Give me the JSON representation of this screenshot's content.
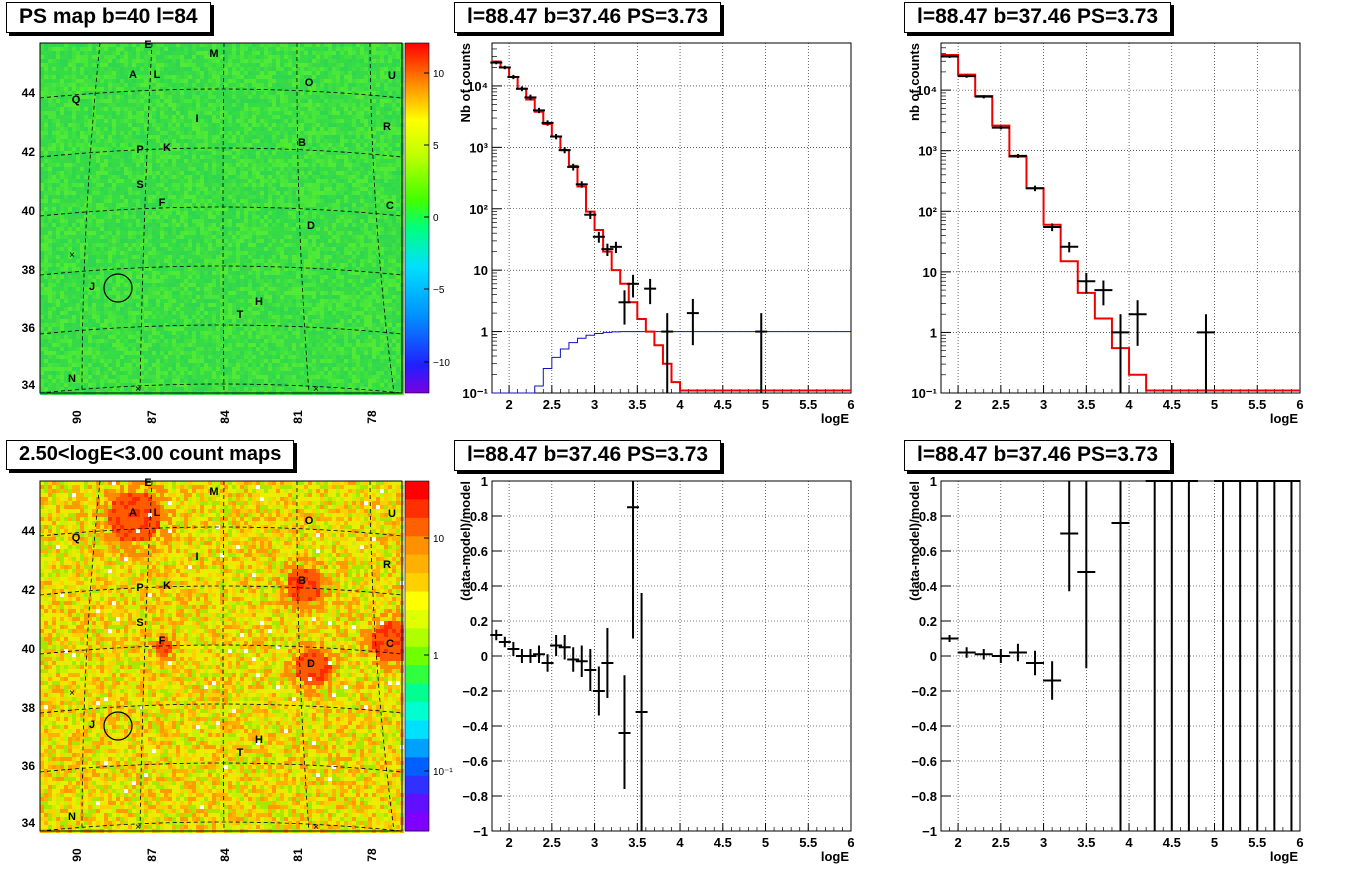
{
  "map_panels": [
    {
      "title": "PS map b=40 l=84",
      "palette_ticks": [
        "10",
        "5",
        "0",
        "−5",
        "−10"
      ],
      "kind": "ps"
    },
    {
      "title": "2.50<logE<3.00 count maps",
      "palette_ticks": [
        "10",
        "1",
        "10⁻¹"
      ],
      "kind": "counts"
    }
  ],
  "map_axes": {
    "x_ticks": [
      "90",
      "87",
      "84",
      "81",
      "78"
    ],
    "y_ticks": [
      "44",
      "42",
      "40",
      "38",
      "36",
      "34"
    ]
  },
  "sources": [
    "E",
    "M",
    "A",
    "L",
    "O",
    "U",
    "Q",
    "I",
    "R",
    "P",
    "K",
    "B",
    "S",
    "F",
    "C",
    "D",
    "J",
    "H",
    "T",
    "N"
  ],
  "chart_data": [
    {
      "type": "line",
      "title": "l=88.47 b=37.46 PS=3.73",
      "xlabel": "logE",
      "ylabel": "Nb of counts",
      "xlim": [
        1.8,
        6
      ],
      "ylim": [
        0.1,
        50000
      ],
      "yscale": "log",
      "x_ticks": [
        "2",
        "2.5",
        "3",
        "3.5",
        "4",
        "4.5",
        "5",
        "5.5",
        "6"
      ],
      "y_ticks": [
        "10⁴",
        "10³",
        "10²",
        "10",
        "1",
        "10⁻¹"
      ],
      "grid": true,
      "data_points": [
        {
          "x": 1.85,
          "y": 24000,
          "ylo": 22500,
          "yhi": 25500
        },
        {
          "x": 1.95,
          "y": 20000,
          "ylo": 18700,
          "yhi": 21300
        },
        {
          "x": 2.05,
          "y": 14000,
          "ylo": 12900,
          "yhi": 15100
        },
        {
          "x": 2.15,
          "y": 9000,
          "ylo": 8200,
          "yhi": 9800
        },
        {
          "x": 2.25,
          "y": 6500,
          "ylo": 5800,
          "yhi": 7200
        },
        {
          "x": 2.35,
          "y": 4000,
          "ylo": 3600,
          "yhi": 4400
        },
        {
          "x": 2.45,
          "y": 2500,
          "ylo": 2250,
          "yhi": 2750
        },
        {
          "x": 2.55,
          "y": 1500,
          "ylo": 1350,
          "yhi": 1650
        },
        {
          "x": 2.65,
          "y": 900,
          "ylo": 800,
          "yhi": 1000
        },
        {
          "x": 2.75,
          "y": 480,
          "ylo": 420,
          "yhi": 540
        },
        {
          "x": 2.85,
          "y": 250,
          "ylo": 220,
          "yhi": 280
        },
        {
          "x": 2.95,
          "y": 80,
          "ylo": 68,
          "yhi": 92
        },
        {
          "x": 3.05,
          "y": 35,
          "ylo": 28,
          "yhi": 42
        },
        {
          "x": 3.15,
          "y": 22,
          "ylo": 17,
          "yhi": 27
        },
        {
          "x": 3.25,
          "y": 24,
          "ylo": 19,
          "yhi": 29
        },
        {
          "x": 3.35,
          "y": 3,
          "ylo": 1.3,
          "yhi": 4.7
        },
        {
          "x": 3.45,
          "y": 6,
          "ylo": 3.6,
          "yhi": 8.4
        },
        {
          "x": 3.65,
          "y": 5,
          "ylo": 2.8,
          "yhi": 7.2
        },
        {
          "x": 3.85,
          "y": 1,
          "ylo": 0.1,
          "yhi": 2.0
        },
        {
          "x": 4.15,
          "y": 2,
          "ylo": 0.6,
          "yhi": 3.4
        },
        {
          "x": 4.95,
          "y": 1,
          "ylo": 0.1,
          "yhi": 2.0
        }
      ],
      "model_hist": {
        "edges": [
          1.8,
          1.9,
          2.0,
          2.1,
          2.2,
          2.3,
          2.4,
          2.5,
          2.6,
          2.7,
          2.8,
          2.9,
          3.0,
          3.1,
          3.2,
          3.3,
          3.4,
          3.5,
          3.6,
          3.7,
          3.8,
          3.9,
          4.0,
          6.0
        ],
        "values": [
          25000,
          20000,
          14000,
          9000,
          6000,
          3800,
          2400,
          1500,
          900,
          500,
          230,
          90,
          45,
          20,
          10,
          6,
          3,
          1.6,
          1.0,
          0.6,
          0.3,
          0.15,
          0.11
        ]
      },
      "blue_curve": {
        "x": [
          1.8,
          2.2,
          2.3,
          2.4,
          2.5,
          2.6,
          2.7,
          2.8,
          2.9,
          3.0,
          3.1,
          3.2,
          3.3,
          3.4,
          6.0
        ],
        "y": [
          0.1,
          0.1,
          0.13,
          0.25,
          0.38,
          0.52,
          0.66,
          0.78,
          0.87,
          0.93,
          0.97,
          0.99,
          1.0,
          1.0,
          1.0
        ]
      }
    },
    {
      "type": "line",
      "title": "l=88.47 b=37.46 PS=3.73",
      "xlabel": "logE",
      "ylabel": "nb of counts",
      "xlim": [
        1.8,
        6
      ],
      "ylim": [
        0.1,
        60000
      ],
      "yscale": "log",
      "x_ticks": [
        "2",
        "2.5",
        "3",
        "3.5",
        "4",
        "4.5",
        "5",
        "5.5",
        "6"
      ],
      "y_ticks": [
        "10⁴",
        "10³",
        "10²",
        "10",
        "1",
        "10⁻¹"
      ],
      "grid": true,
      "data_points": [
        {
          "x": 1.9,
          "y": 36000,
          "ylo": 34000,
          "yhi": 38000
        },
        {
          "x": 2.1,
          "y": 17000,
          "ylo": 16000,
          "yhi": 18000
        },
        {
          "x": 2.3,
          "y": 7800,
          "ylo": 7300,
          "yhi": 8300
        },
        {
          "x": 2.5,
          "y": 2400,
          "ylo": 2250,
          "yhi": 2550
        },
        {
          "x": 2.7,
          "y": 820,
          "ylo": 760,
          "yhi": 880
        },
        {
          "x": 2.9,
          "y": 240,
          "ylo": 215,
          "yhi": 265
        },
        {
          "x": 3.1,
          "y": 55,
          "ylo": 47,
          "yhi": 63
        },
        {
          "x": 3.3,
          "y": 26,
          "ylo": 21,
          "yhi": 31
        },
        {
          "x": 3.5,
          "y": 7,
          "ylo": 4.4,
          "yhi": 9.6
        },
        {
          "x": 3.7,
          "y": 5,
          "ylo": 2.8,
          "yhi": 7.2
        },
        {
          "x": 3.9,
          "y": 1,
          "ylo": 0.1,
          "yhi": 2.0
        },
        {
          "x": 4.1,
          "y": 2,
          "ylo": 0.6,
          "yhi": 3.4
        },
        {
          "x": 4.9,
          "y": 1,
          "ylo": 0.1,
          "yhi": 2.0
        }
      ],
      "model_hist": {
        "edges": [
          1.8,
          2.0,
          2.2,
          2.4,
          2.6,
          2.8,
          3.0,
          3.2,
          3.4,
          3.6,
          3.8,
          4.0,
          4.2,
          6.0
        ],
        "values": [
          38000,
          18000,
          8000,
          2600,
          800,
          240,
          60,
          15,
          4.5,
          1.7,
          0.55,
          0.2,
          0.11
        ]
      }
    },
    {
      "type": "scatter",
      "title": "l=88.47 b=37.46 PS=3.73",
      "xlabel": "logE",
      "ylabel": "(data-model)/model",
      "xlim": [
        1.8,
        6
      ],
      "ylim": [
        -1,
        1
      ],
      "x_ticks": [
        "2",
        "2.5",
        "3",
        "3.5",
        "4",
        "4.5",
        "5",
        "5.5",
        "6"
      ],
      "y_ticks": [
        "1",
        "0.8",
        "0.6",
        "0.4",
        "0.2",
        "0",
        "−0.2",
        "−0.4",
        "−0.6",
        "−0.8",
        "−1"
      ],
      "grid": true,
      "data_points": [
        {
          "x": 1.85,
          "y": 0.12,
          "ylo": 0.09,
          "yhi": 0.15
        },
        {
          "x": 1.95,
          "y": 0.08,
          "ylo": 0.05,
          "yhi": 0.11
        },
        {
          "x": 2.05,
          "y": 0.04,
          "ylo": 0.0,
          "yhi": 0.08
        },
        {
          "x": 2.15,
          "y": 0.0,
          "ylo": -0.04,
          "yhi": 0.04
        },
        {
          "x": 2.25,
          "y": 0.0,
          "ylo": -0.04,
          "yhi": 0.04
        },
        {
          "x": 2.35,
          "y": 0.01,
          "ylo": -0.04,
          "yhi": 0.06
        },
        {
          "x": 2.45,
          "y": -0.04,
          "ylo": -0.09,
          "yhi": 0.01
        },
        {
          "x": 2.55,
          "y": 0.06,
          "ylo": 0.0,
          "yhi": 0.12
        },
        {
          "x": 2.65,
          "y": 0.05,
          "ylo": -0.02,
          "yhi": 0.12
        },
        {
          "x": 2.75,
          "y": -0.02,
          "ylo": -0.09,
          "yhi": 0.05
        },
        {
          "x": 2.85,
          "y": -0.03,
          "ylo": -0.12,
          "yhi": 0.06
        },
        {
          "x": 2.95,
          "y": -0.08,
          "ylo": -0.2,
          "yhi": 0.04
        },
        {
          "x": 3.05,
          "y": -0.2,
          "ylo": -0.34,
          "yhi": -0.06
        },
        {
          "x": 3.15,
          "y": -0.04,
          "ylo": -0.24,
          "yhi": 0.16
        },
        {
          "x": 3.35,
          "y": -0.44,
          "ylo": -0.76,
          "yhi": -0.11
        },
        {
          "x": 3.45,
          "y": 0.85,
          "ylo": 0.1,
          "yhi": 1.0
        },
        {
          "x": 3.55,
          "y": -0.32,
          "ylo": -1.0,
          "yhi": 0.36
        }
      ]
    },
    {
      "type": "scatter",
      "title": "l=88.47 b=37.46 PS=3.73",
      "xlabel": "logE",
      "ylabel": "(data-model)/model",
      "xlim": [
        1.8,
        6
      ],
      "ylim": [
        -1,
        1
      ],
      "x_ticks": [
        "2",
        "2.5",
        "3",
        "3.5",
        "4",
        "4.5",
        "5",
        "5.5",
        "6"
      ],
      "y_ticks": [
        "1",
        "0.8",
        "0.6",
        "0.4",
        "0.2",
        "0",
        "−0.2",
        "−0.4",
        "−0.6",
        "−0.8",
        "−1"
      ],
      "grid": true,
      "data_points": [
        {
          "x": 1.9,
          "y": 0.1,
          "ylo": 0.08,
          "yhi": 0.12
        },
        {
          "x": 2.1,
          "y": 0.02,
          "ylo": -0.01,
          "yhi": 0.05
        },
        {
          "x": 2.3,
          "y": 0.01,
          "ylo": -0.02,
          "yhi": 0.04
        },
        {
          "x": 2.5,
          "y": 0.0,
          "ylo": -0.04,
          "yhi": 0.04
        },
        {
          "x": 2.7,
          "y": 0.02,
          "ylo": -0.03,
          "yhi": 0.07
        },
        {
          "x": 2.9,
          "y": -0.04,
          "ylo": -0.11,
          "yhi": 0.03
        },
        {
          "x": 3.1,
          "y": -0.14,
          "ylo": -0.25,
          "yhi": -0.03
        },
        {
          "x": 3.3,
          "y": 0.7,
          "ylo": 0.37,
          "yhi": 1.0
        },
        {
          "x": 3.5,
          "y": 0.48,
          "ylo": -0.07,
          "yhi": 1.0
        },
        {
          "x": 3.9,
          "y": 0.76,
          "ylo": -1.0,
          "yhi": 1.0
        },
        {
          "x": 4.3,
          "y": 1.0,
          "ylo": -1.0,
          "yhi": 1.0
        },
        {
          "x": 4.5,
          "y": 1.0,
          "ylo": -1.0,
          "yhi": 1.0
        },
        {
          "x": 4.7,
          "y": 1.0,
          "ylo": -1.0,
          "yhi": 1.0
        },
        {
          "x": 5.1,
          "y": 1.0,
          "ylo": -1.0,
          "yhi": 1.0
        },
        {
          "x": 5.3,
          "y": 1.0,
          "ylo": -1.0,
          "yhi": 1.0
        },
        {
          "x": 5.5,
          "y": 1.0,
          "ylo": -1.0,
          "yhi": 1.0
        },
        {
          "x": 5.7,
          "y": 1.0,
          "ylo": -1.0,
          "yhi": 1.0
        },
        {
          "x": 5.9,
          "y": 1.0,
          "ylo": -1.0,
          "yhi": 1.0
        }
      ]
    }
  ]
}
